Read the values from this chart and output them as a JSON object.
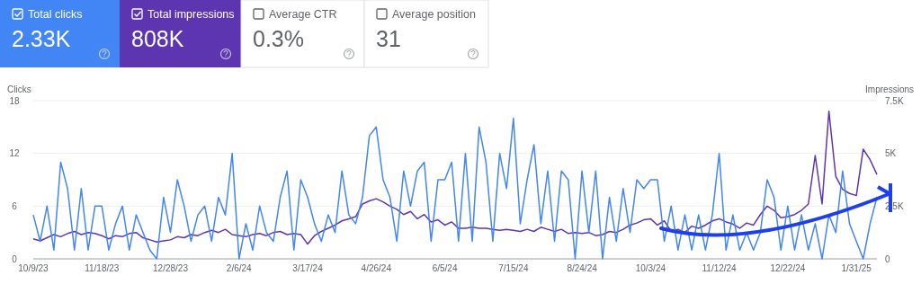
{
  "chart_data": [
    {
      "type": "other",
      "categories": [
        "Total clicks",
        "Total impressions",
        "Average CTR",
        "Average position"
      ],
      "value_labels": [
        "2.33K",
        "808K",
        "0.3%",
        "31"
      ],
      "colors": [
        "#4285f4",
        "#5e35b1",
        null,
        null
      ]
    },
    {
      "type": "line",
      "ylabel": "Clicks",
      "y2label": "Impressions",
      "x": [
        "2023-10-09",
        "2023-10-13",
        "2023-10-17",
        "2023-10-21",
        "2023-10-25",
        "2023-10-29",
        "2023-11-02",
        "2023-11-06",
        "2023-11-10",
        "2023-11-14",
        "2023-11-18",
        "2023-11-22",
        "2023-11-26",
        "2023-11-30",
        "2023-12-04",
        "2023-12-08",
        "2023-12-12",
        "2023-12-16",
        "2023-12-20",
        "2023-12-24",
        "2023-12-28",
        "2024-01-01",
        "2024-01-05",
        "2024-01-09",
        "2024-01-13",
        "2024-01-17",
        "2024-01-21",
        "2024-01-25",
        "2024-01-29",
        "2024-02-02",
        "2024-02-06",
        "2024-02-10",
        "2024-02-14",
        "2024-02-18",
        "2024-02-22",
        "2024-02-26",
        "2024-03-01",
        "2024-03-05",
        "2024-03-09",
        "2024-03-13",
        "2024-03-17",
        "2024-03-21",
        "2024-03-25",
        "2024-03-29",
        "2024-04-02",
        "2024-04-06",
        "2024-04-10",
        "2024-04-14",
        "2024-04-18",
        "2024-04-22",
        "2024-04-26",
        "2024-04-30",
        "2024-05-04",
        "2024-05-08",
        "2024-05-12",
        "2024-05-16",
        "2024-05-20",
        "2024-05-24",
        "2024-05-28",
        "2024-06-01",
        "2024-06-05",
        "2024-06-09",
        "2024-06-13",
        "2024-06-17",
        "2024-06-21",
        "2024-06-25",
        "2024-06-29",
        "2024-07-03",
        "2024-07-07",
        "2024-07-11",
        "2024-07-15",
        "2024-07-19",
        "2024-07-23",
        "2024-07-27",
        "2024-07-31",
        "2024-08-04",
        "2024-08-08",
        "2024-08-12",
        "2024-08-16",
        "2024-08-20",
        "2024-08-24",
        "2024-08-28",
        "2024-09-01",
        "2024-09-05",
        "2024-09-09",
        "2024-09-13",
        "2024-09-17",
        "2024-09-21",
        "2024-09-25",
        "2024-09-29",
        "2024-10-03",
        "2024-10-07",
        "2024-10-11",
        "2024-10-15",
        "2024-10-19",
        "2024-10-23",
        "2024-10-27",
        "2024-10-31",
        "2024-11-04",
        "2024-11-08",
        "2024-11-12",
        "2024-11-16",
        "2024-11-20",
        "2024-11-24",
        "2024-11-28",
        "2024-12-02",
        "2024-12-06",
        "2024-12-10",
        "2024-12-14",
        "2024-12-18",
        "2024-12-22",
        "2024-12-26",
        "2024-12-30",
        "2025-01-03",
        "2025-01-07",
        "2025-01-11",
        "2025-01-15",
        "2025-01-19",
        "2025-01-23",
        "2025-01-27",
        "2025-01-31",
        "2025-02-04",
        "2025-02-08",
        "2025-02-12"
      ],
      "series": [
        {
          "color": "#4285f4",
          "values": [
            5,
            2,
            6,
            1,
            11,
            8,
            1,
            8,
            1,
            6,
            6,
            1,
            4,
            6,
            1,
            5,
            3,
            1,
            0,
            7,
            3,
            9,
            6,
            2,
            5,
            6,
            2,
            7,
            5,
            12,
            0,
            4,
            1,
            6,
            3,
            2,
            7,
            10,
            1,
            9,
            7,
            4,
            2,
            5,
            3,
            10,
            5,
            4,
            7,
            14,
            15,
            9,
            7,
            2,
            10,
            6,
            10,
            11,
            2,
            9,
            9,
            11,
            2,
            12,
            2,
            15,
            11,
            2,
            12,
            8,
            16,
            4,
            9,
            13,
            4,
            10,
            2,
            10,
            9,
            0,
            10,
            3,
            10,
            0,
            7,
            2,
            8,
            3,
            9,
            8,
            9,
            9,
            2,
            6,
            1,
            5,
            1,
            5,
            1,
            5,
            12,
            1,
            5,
            1,
            3,
            1,
            3,
            9,
            7,
            1,
            6,
            1,
            5,
            1,
            4,
            0,
            5,
            3,
            10,
            4,
            2,
            0,
            4,
            7
          ]
        },
        {
          "color": "#5e35b1",
          "axis": "y2",
          "values": [
            950,
            850,
            1000,
            1150,
            1050,
            1200,
            1300,
            1150,
            1250,
            1200,
            1100,
            950,
            1100,
            1050,
            1200,
            1250,
            1000,
            900,
            800,
            850,
            900,
            1050,
            1000,
            1150,
            1100,
            1250,
            1350,
            1250,
            1400,
            1150,
            1100,
            1050,
            1150,
            1200,
            1100,
            1250,
            1300,
            1150,
            1200,
            1150,
            700,
            1100,
            1300,
            1450,
            1600,
            1800,
            1900,
            2000,
            2600,
            2750,
            2850,
            2700,
            2500,
            2350,
            2100,
            2250,
            1900,
            2100,
            1750,
            1850,
            1600,
            1750,
            1450,
            1450,
            1500,
            1450,
            1450,
            1400,
            1350,
            1400,
            1350,
            1300,
            1400,
            1300,
            1500,
            1400,
            1300,
            1400,
            1200,
            1250,
            1200,
            1250,
            1100,
            1150,
            1300,
            1250,
            1400,
            1600,
            1700,
            1850,
            1900,
            1600,
            1800,
            1300,
            1400,
            1250,
            1550,
            1450,
            1600,
            1800,
            1900,
            1750,
            1650,
            1450,
            1700,
            1600,
            2100,
            2500,
            2300,
            1950,
            2000,
            2100,
            2300,
            2600,
            4900,
            2600,
            7000,
            3900,
            3300,
            3100,
            3000,
            5200,
            4700,
            4000
          ]
        }
      ],
      "xlim": [
        "2023-10-09",
        "2025-02-12"
      ],
      "xticks": [
        {
          "value": "2023-10-09",
          "label": "10/9/23"
        },
        {
          "value": "2023-11-18",
          "label": "11/18/23"
        },
        {
          "value": "2023-12-28",
          "label": "12/28/23"
        },
        {
          "value": "2024-02-06",
          "label": "2/6/24"
        },
        {
          "value": "2024-03-17",
          "label": "3/17/24"
        },
        {
          "value": "2024-04-26",
          "label": "4/26/24"
        },
        {
          "value": "2024-06-05",
          "label": "6/5/24"
        },
        {
          "value": "2024-07-15",
          "label": "7/15/24"
        },
        {
          "value": "2024-08-24",
          "label": "8/24/24"
        },
        {
          "value": "2024-10-03",
          "label": "10/3/24"
        },
        {
          "value": "2024-11-12",
          "label": "11/12/24"
        },
        {
          "value": "2024-12-22",
          "label": "12/22/24"
        },
        {
          "value": "2025-01-31",
          "label": "1/31/25"
        }
      ],
      "ylim": [
        0,
        18
      ],
      "yticks": [
        0,
        6,
        12,
        18
      ],
      "y2lim": [
        0,
        7500
      ],
      "y2ticks": [
        0,
        {
          "value": 2500,
          "label": "2.5K"
        },
        {
          "value": 5000,
          "label": "5K"
        },
        {
          "value": 7500,
          "label": "7.5K"
        }
      ],
      "grid": "y"
    }
  ]
}
